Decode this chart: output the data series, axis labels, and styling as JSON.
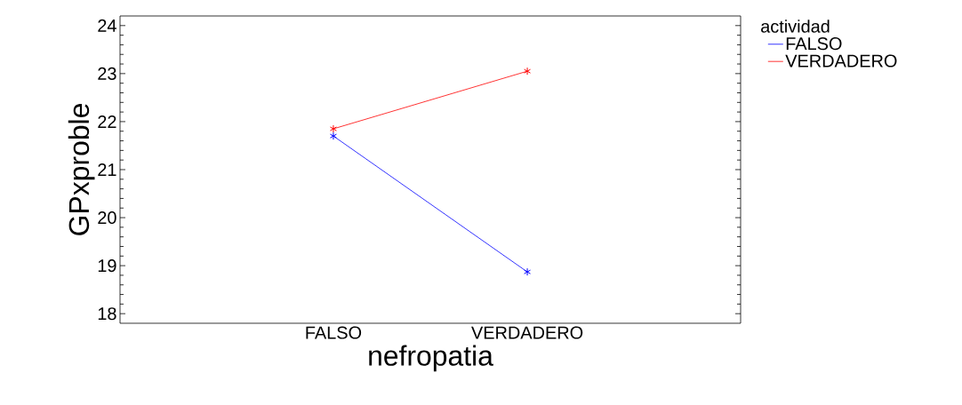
{
  "chart_data": {
    "type": "line",
    "xlabel": "nefropatia",
    "ylabel": "GPxproble",
    "legend_title": "actividad",
    "categories": [
      "FALSO",
      "VERDADERO"
    ],
    "series": [
      {
        "name": "FALSO",
        "color": "#0000ff",
        "values": [
          21.7,
          18.87
        ]
      },
      {
        "name": "VERDADERO",
        "color": "#ff0000",
        "values": [
          21.85,
          23.05
        ]
      }
    ],
    "ylim": [
      17.8,
      24.2
    ],
    "yticks": [
      18,
      19,
      20,
      21,
      22,
      23,
      24
    ],
    "marker": "cross",
    "legend": "top right",
    "grid": false
  }
}
